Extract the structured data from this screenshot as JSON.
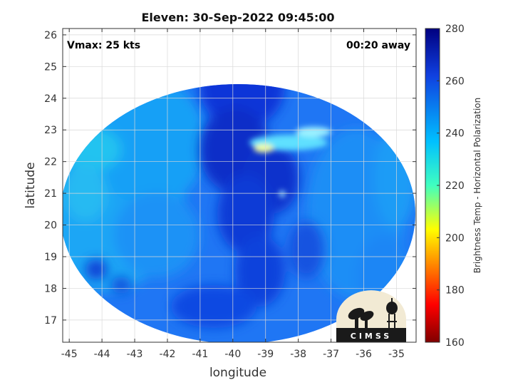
{
  "title": "Eleven: 30-Sep-2022 09:45:00",
  "vmax_label": "Vmax: 25 kts",
  "away_label": "00:20 away",
  "xlabel": "longitude",
  "ylabel": "latitude",
  "colorbar": {
    "label": "Brightness Temp - Horizontal Polarization",
    "ticks": [
      "280",
      "260",
      "240",
      "220",
      "200",
      "180",
      "160"
    ],
    "range": [
      160,
      280
    ]
  },
  "logo": {
    "text": "CIMSS"
  },
  "map_data": {
    "xlim": [
      -45.2,
      -34.4
    ],
    "ylim": [
      16.3,
      26.2
    ],
    "xticks": [
      "-45",
      "-44",
      "-43",
      "-42",
      "-41",
      "-40",
      "-39",
      "-38",
      "-37",
      "-36",
      "-35"
    ],
    "yticks": [
      "17",
      "18",
      "19",
      "20",
      "21",
      "22",
      "23",
      "24",
      "25",
      "26"
    ],
    "grid": true
  }
}
